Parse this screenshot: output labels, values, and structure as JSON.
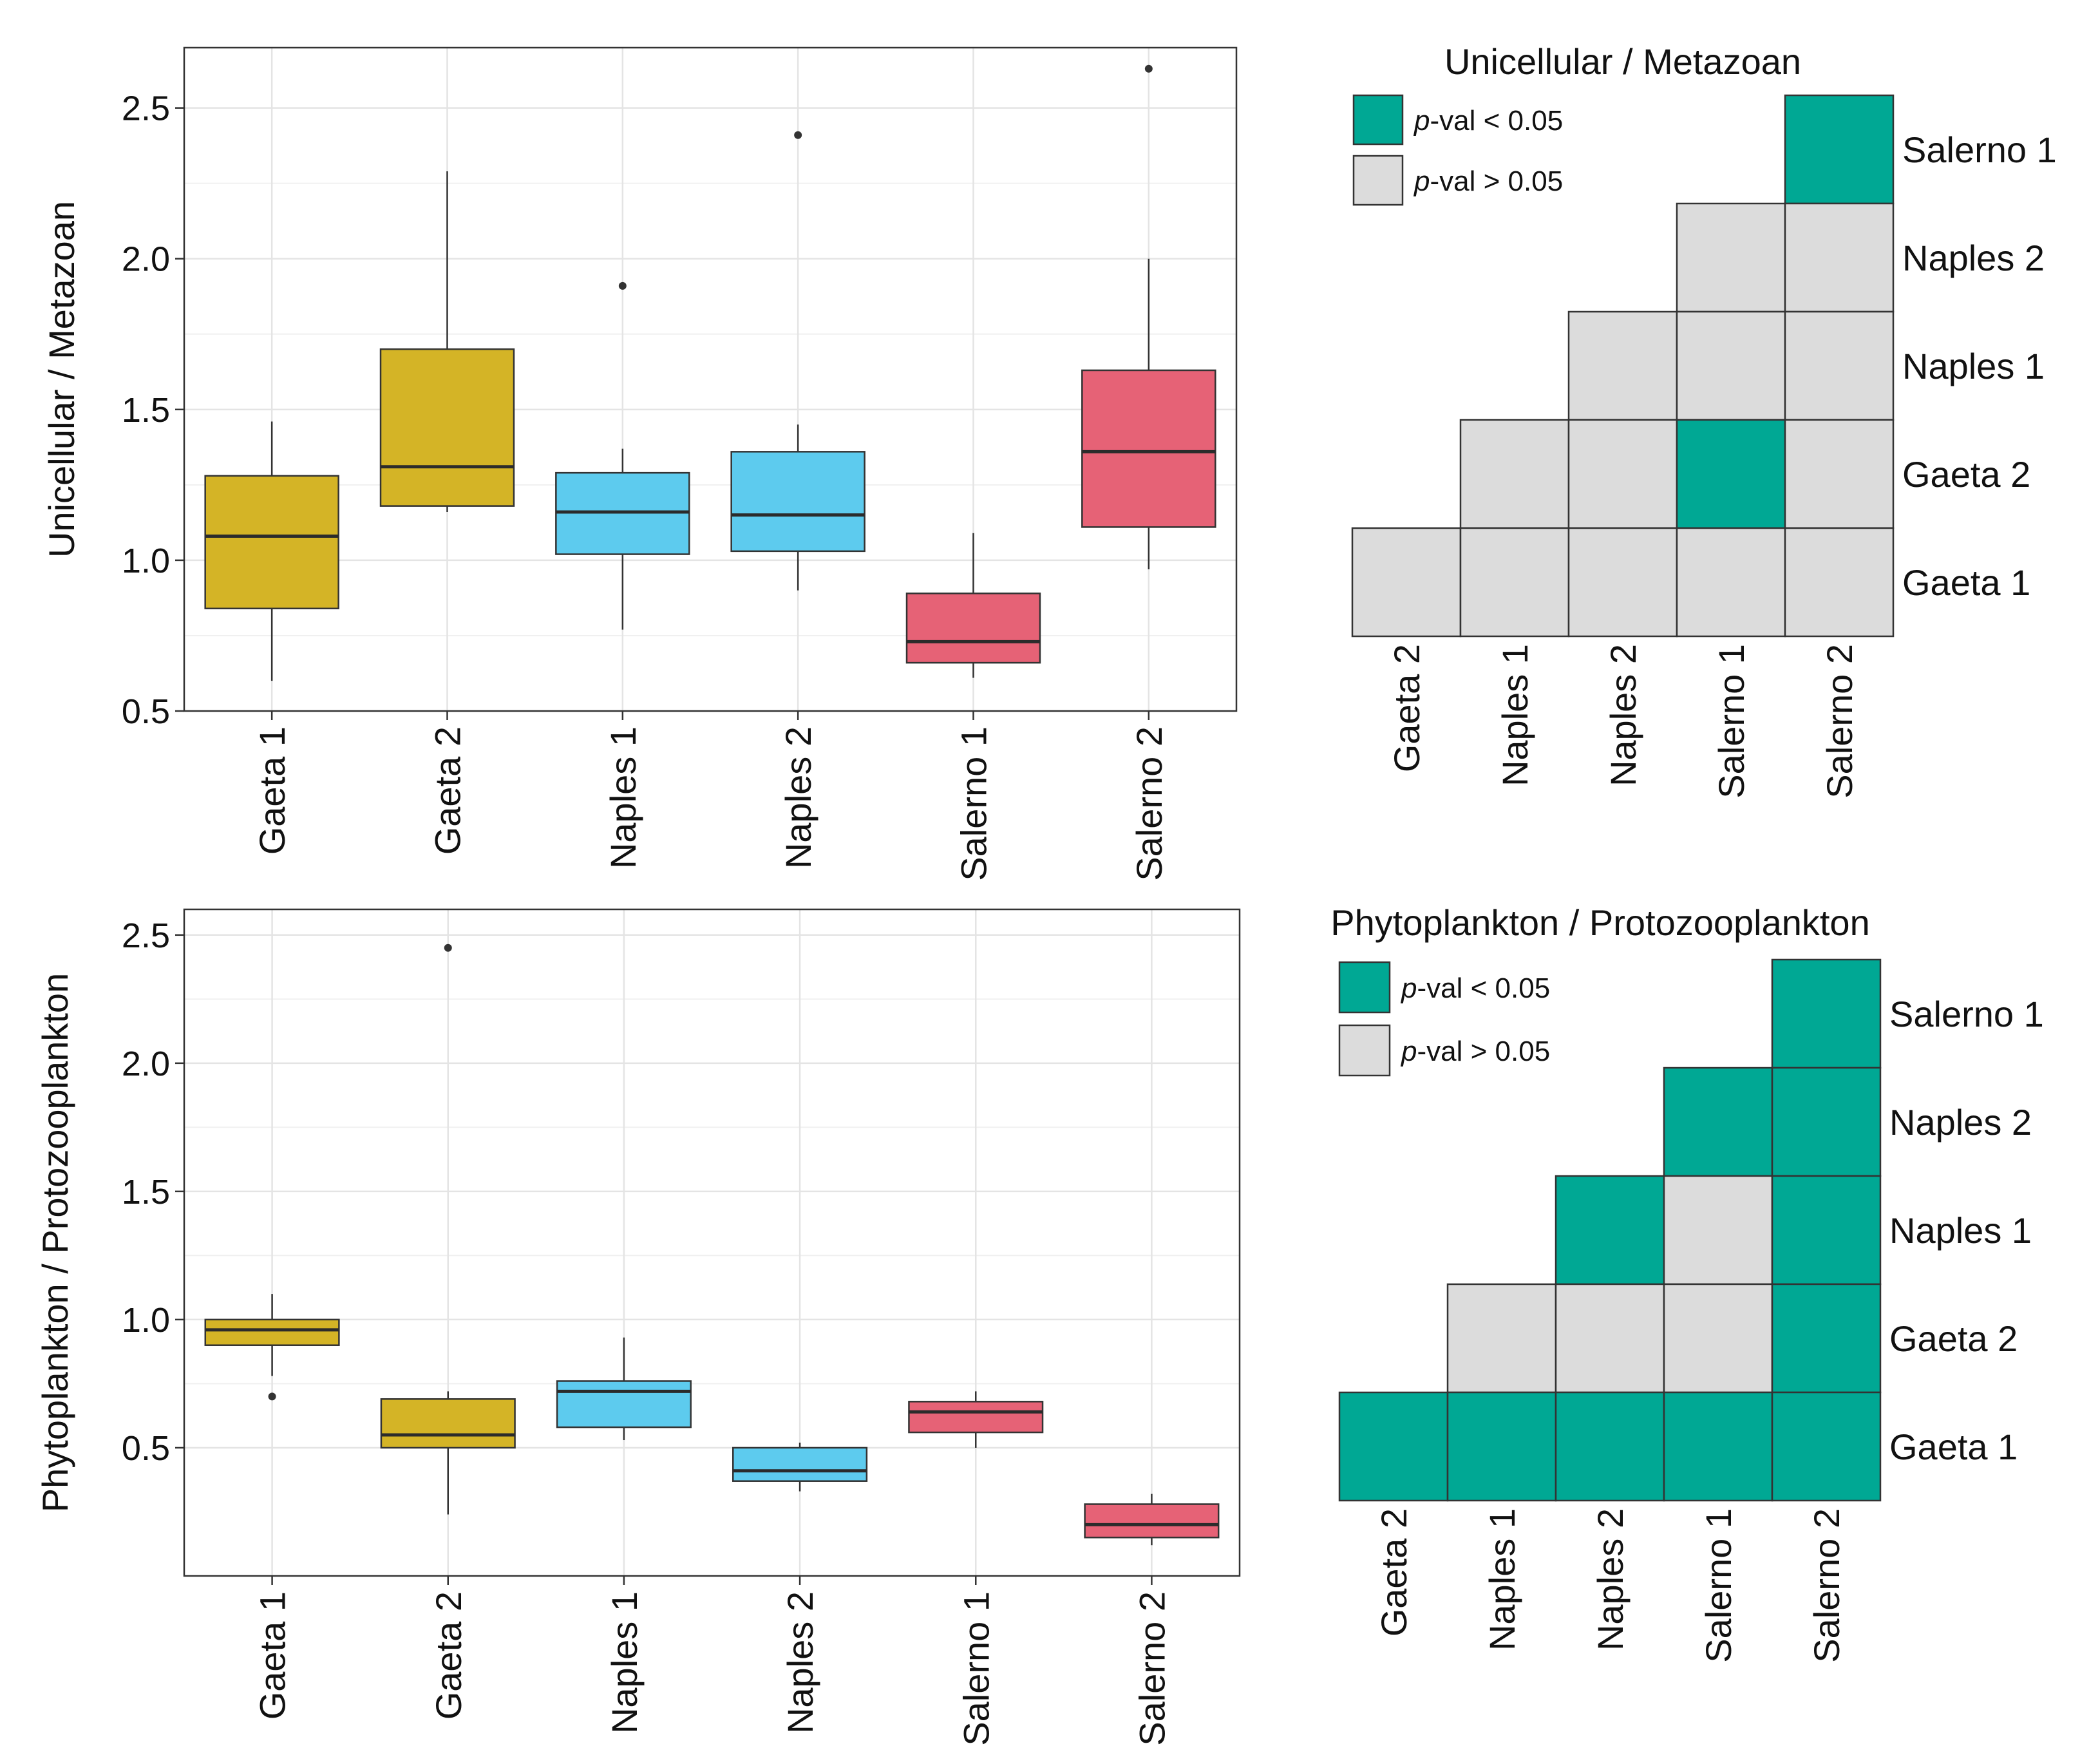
{
  "chart_data": [
    {
      "type": "boxplot",
      "ylabel": "Unicellular / Metazoan",
      "ylim": [
        0.5,
        2.7
      ],
      "yticks": [
        0.5,
        1.0,
        1.5,
        2.0,
        2.5
      ],
      "ytick_labels": [
        "0.5",
        "1.0",
        "1.5",
        "2.0",
        "2.5"
      ],
      "categories": [
        "Gaeta 1",
        "Gaeta 2",
        "Naples 1",
        "Naples 2",
        "Salerno 1",
        "Salerno 2"
      ],
      "boxes": [
        {
          "label": "Gaeta 1",
          "color": "#d4b426",
          "q1": 0.84,
          "median": 1.08,
          "q3": 1.28,
          "whisker_low": 0.6,
          "whisker_high": 1.46,
          "outliers": []
        },
        {
          "label": "Gaeta 2",
          "color": "#d4b426",
          "q1": 1.18,
          "median": 1.31,
          "q3": 1.7,
          "whisker_low": 1.16,
          "whisker_high": 2.29,
          "outliers": []
        },
        {
          "label": "Naples 1",
          "color": "#5dcbee",
          "q1": 1.02,
          "median": 1.16,
          "q3": 1.29,
          "whisker_low": 0.77,
          "whisker_high": 1.37,
          "outliers": [
            1.91
          ]
        },
        {
          "label": "Naples 2",
          "color": "#5dcbee",
          "q1": 1.03,
          "median": 1.15,
          "q3": 1.36,
          "whisker_low": 0.9,
          "whisker_high": 1.45,
          "outliers": [
            2.41
          ]
        },
        {
          "label": "Salerno 1",
          "color": "#e66276",
          "q1": 0.66,
          "median": 0.73,
          "q3": 0.89,
          "whisker_low": 0.61,
          "whisker_high": 1.09,
          "outliers": []
        },
        {
          "label": "Salerno 2",
          "color": "#e66276",
          "q1": 1.11,
          "median": 1.36,
          "q3": 1.63,
          "whisker_low": 0.97,
          "whisker_high": 2.0,
          "outliers": [
            2.63
          ]
        }
      ]
    },
    {
      "type": "boxplot",
      "ylabel": "Phytoplankton / Protozooplankton",
      "ylim": [
        0.0,
        2.6
      ],
      "yticks": [
        0.5,
        1.0,
        1.5,
        2.0,
        2.5
      ],
      "ytick_labels": [
        "0.5",
        "1.0",
        "1.5",
        "2.0",
        "2.5"
      ],
      "categories": [
        "Gaeta 1",
        "Gaeta 2",
        "Naples 1",
        "Naples 2",
        "Salerno 1",
        "Salerno 2"
      ],
      "boxes": [
        {
          "label": "Gaeta 1",
          "color": "#d4b426",
          "q1": 0.9,
          "median": 0.96,
          "q3": 1.0,
          "whisker_low": 0.78,
          "whisker_high": 1.1,
          "outliers": [
            0.7
          ]
        },
        {
          "label": "Gaeta 2",
          "color": "#d4b426",
          "q1": 0.5,
          "median": 0.55,
          "q3": 0.69,
          "whisker_low": 0.24,
          "whisker_high": 0.72,
          "outliers": [
            2.45
          ]
        },
        {
          "label": "Naples 1",
          "color": "#5dcbee",
          "q1": 0.58,
          "median": 0.72,
          "q3": 0.76,
          "whisker_low": 0.53,
          "whisker_high": 0.93,
          "outliers": []
        },
        {
          "label": "Naples 2",
          "color": "#5dcbee",
          "q1": 0.37,
          "median": 0.41,
          "q3": 0.5,
          "whisker_low": 0.33,
          "whisker_high": 0.52,
          "outliers": []
        },
        {
          "label": "Salerno 1",
          "color": "#e66276",
          "q1": 0.56,
          "median": 0.64,
          "q3": 0.68,
          "whisker_low": 0.5,
          "whisker_high": 0.72,
          "outliers": []
        },
        {
          "label": "Salerno 2",
          "color": "#e66276",
          "q1": 0.15,
          "median": 0.2,
          "q3": 0.28,
          "whisker_low": 0.12,
          "whisker_high": 0.32,
          "outliers": []
        }
      ]
    },
    {
      "type": "heatmap",
      "title": "Unicellular / Metazoan",
      "legend": [
        {
          "italic": "p",
          "text": "-val < 0.05",
          "color": "#00a894"
        },
        {
          "italic": "p",
          "text": "-val > 0.05",
          "color": "#dcdcdc"
        }
      ],
      "columns": [
        "Gaeta 2",
        "Naples 1",
        "Naples 2",
        "Salerno 1",
        "Salerno 2"
      ],
      "rows": [
        "Salerno 1",
        "Naples 2",
        "Naples 1",
        "Gaeta 2",
        "Gaeta 1"
      ],
      "significant": [
        [
          null,
          null,
          null,
          null,
          true
        ],
        [
          null,
          null,
          null,
          false,
          false
        ],
        [
          null,
          null,
          false,
          false,
          false
        ],
        [
          null,
          false,
          false,
          true,
          false
        ],
        [
          false,
          false,
          false,
          false,
          false
        ]
      ]
    },
    {
      "type": "heatmap",
      "title": "Phytoplankton / Protozooplankton",
      "legend": [
        {
          "italic": "p",
          "text": "-val < 0.05",
          "color": "#00a894"
        },
        {
          "italic": "p",
          "text": "-val > 0.05",
          "color": "#dcdcdc"
        }
      ],
      "columns": [
        "Gaeta 2",
        "Naples 1",
        "Naples 2",
        "Salerno 1",
        "Salerno 2"
      ],
      "rows": [
        "Salerno 1",
        "Naples 2",
        "Naples 1",
        "Gaeta 2",
        "Gaeta 1"
      ],
      "significant": [
        [
          null,
          null,
          null,
          null,
          true
        ],
        [
          null,
          null,
          null,
          true,
          true
        ],
        [
          null,
          null,
          true,
          false,
          true
        ],
        [
          null,
          false,
          false,
          false,
          true
        ],
        [
          true,
          true,
          true,
          true,
          true
        ]
      ]
    }
  ]
}
